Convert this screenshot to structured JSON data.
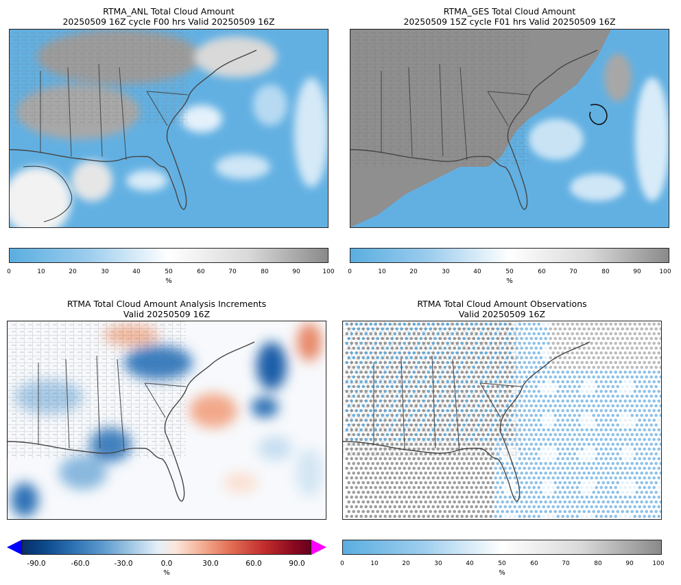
{
  "panels": {
    "anl": {
      "title1": "RTMA_ANL Total Cloud Amount",
      "title2": "20250509 16Z cycle F00 hrs Valid 20250509 16Z"
    },
    "ges": {
      "title1": "RTMA_GES Total Cloud Amount",
      "title2": "20250509 15Z cycle F01 hrs Valid 20250509 16Z"
    },
    "inc": {
      "title1": "RTMA Total Cloud Amount Analysis Increments",
      "title2": "Valid 20250509 16Z"
    },
    "obs": {
      "title1": "RTMA Total Cloud Amount Observations",
      "title2": "Valid 20250509 16Z"
    }
  },
  "colorbar_pct": {
    "ticks": [
      "0",
      "10",
      "20",
      "30",
      "40",
      "50",
      "60",
      "70",
      "80",
      "90",
      "100"
    ],
    "unit": "%",
    "colors": [
      "#5aaee0",
      "#ffffff",
      "#8a8a8a"
    ]
  },
  "colorbar_inc": {
    "ticks": [
      "-90.0",
      "-60.0",
      "-30.0",
      "0.0",
      "30.0",
      "60.0",
      "90.0"
    ],
    "unit": "%",
    "under_color": "#0000ff",
    "over_color": "#ff00ff"
  },
  "colors": {
    "cloud_free": "#62b0e2",
    "overcast": "#8f8f8f",
    "land_boundary": "#444444"
  }
}
